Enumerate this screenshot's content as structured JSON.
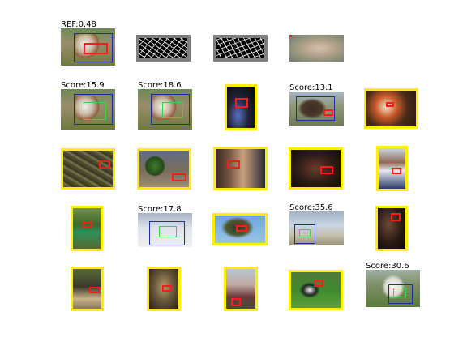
{
  "labels": {
    "ref": "REF:0.48",
    "r1c1": "Score:15.9",
    "r1c2": "Score:18.6",
    "r1c4": "Score:13.1",
    "r3c2": "Score:17.8",
    "r3c4": "Score:35.6",
    "r4c5": "Score:30.6"
  },
  "colors": {
    "highlight_border": "#ffee00",
    "detection_box": "#ff1a1a",
    "ground_truth_box": "#1a2ea8",
    "match_box": "#39d34a"
  }
}
